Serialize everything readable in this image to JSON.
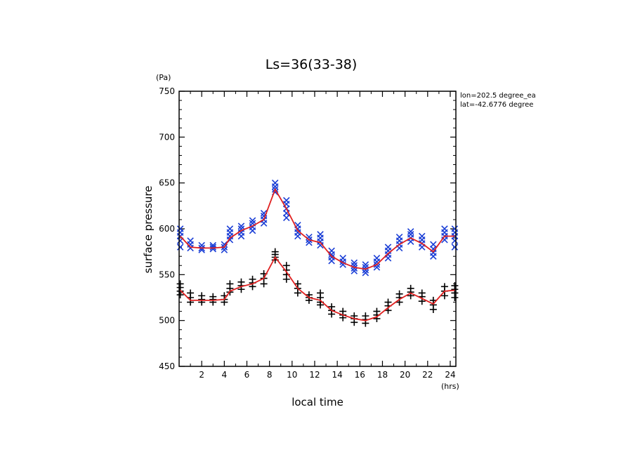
{
  "chart_data": {
    "type": "scatter",
    "title": "Ls=36(33-38)",
    "xlabel": "local time",
    "ylabel": "surface pressure",
    "x_unit": "(hrs)",
    "y_unit": "(Pa)",
    "xlim": [
      0,
      24.5
    ],
    "ylim": [
      450,
      750
    ],
    "x_ticks": [
      2,
      4,
      6,
      8,
      10,
      12,
      14,
      16,
      18,
      20,
      22,
      24
    ],
    "y_ticks": [
      450,
      500,
      550,
      600,
      650,
      700,
      750
    ],
    "annotations": [
      "lon=202.5 degree_ea",
      "lat=-42.6776 degree"
    ],
    "grid": false,
    "series": [
      {
        "marker": "x",
        "color": "#1a3ed6",
        "points": [
          [
            0.1,
            600
          ],
          [
            0.1,
            596
          ],
          [
            0.1,
            592
          ],
          [
            0.1,
            587
          ],
          [
            0.1,
            580
          ],
          [
            1.0,
            587
          ],
          [
            1.0,
            583
          ],
          [
            1.0,
            579
          ],
          [
            2.0,
            582
          ],
          [
            2.0,
            579
          ],
          [
            2.0,
            577
          ],
          [
            3.0,
            582
          ],
          [
            3.0,
            580
          ],
          [
            3.0,
            578
          ],
          [
            4.0,
            583
          ],
          [
            4.0,
            580
          ],
          [
            4.0,
            577
          ],
          [
            4.5,
            600
          ],
          [
            4.5,
            596
          ],
          [
            4.5,
            592
          ],
          [
            4.5,
            588
          ],
          [
            5.5,
            603
          ],
          [
            5.5,
            600
          ],
          [
            5.5,
            596
          ],
          [
            5.5,
            592
          ],
          [
            6.5,
            609
          ],
          [
            6.5,
            606
          ],
          [
            6.5,
            602
          ],
          [
            6.5,
            598
          ],
          [
            7.5,
            617
          ],
          [
            7.5,
            614
          ],
          [
            7.5,
            610
          ],
          [
            7.5,
            606
          ],
          [
            8.5,
            650
          ],
          [
            8.5,
            646
          ],
          [
            8.5,
            643
          ],
          [
            8.5,
            640
          ],
          [
            9.5,
            631
          ],
          [
            9.5,
            627
          ],
          [
            9.5,
            622
          ],
          [
            9.5,
            617
          ],
          [
            9.5,
            612
          ],
          [
            10.5,
            604
          ],
          [
            10.5,
            600
          ],
          [
            10.5,
            596
          ],
          [
            10.5,
            592
          ],
          [
            11.5,
            591
          ],
          [
            11.5,
            588
          ],
          [
            11.5,
            585
          ],
          [
            12.5,
            594
          ],
          [
            12.5,
            590
          ],
          [
            12.5,
            586
          ],
          [
            12.5,
            582
          ],
          [
            13.5,
            576
          ],
          [
            13.5,
            572
          ],
          [
            13.5,
            569
          ],
          [
            13.5,
            565
          ],
          [
            14.5,
            568
          ],
          [
            14.5,
            564
          ],
          [
            14.5,
            561
          ],
          [
            15.5,
            563
          ],
          [
            15.5,
            560
          ],
          [
            15.5,
            557
          ],
          [
            15.5,
            554
          ],
          [
            16.5,
            561
          ],
          [
            16.5,
            558
          ],
          [
            16.5,
            555
          ],
          [
            16.5,
            552
          ],
          [
            17.5,
            568
          ],
          [
            17.5,
            564
          ],
          [
            17.5,
            561
          ],
          [
            17.5,
            558
          ],
          [
            18.5,
            580
          ],
          [
            18.5,
            576
          ],
          [
            18.5,
            572
          ],
          [
            18.5,
            568
          ],
          [
            19.5,
            591
          ],
          [
            19.5,
            587
          ],
          [
            19.5,
            583
          ],
          [
            19.5,
            579
          ],
          [
            20.5,
            597
          ],
          [
            20.5,
            594
          ],
          [
            20.5,
            590
          ],
          [
            20.5,
            586
          ],
          [
            21.5,
            592
          ],
          [
            21.5,
            588
          ],
          [
            21.5,
            584
          ],
          [
            21.5,
            580
          ],
          [
            22.5,
            583
          ],
          [
            22.5,
            578
          ],
          [
            22.5,
            574
          ],
          [
            22.5,
            570
          ],
          [
            23.5,
            600
          ],
          [
            23.5,
            596
          ],
          [
            23.5,
            592
          ],
          [
            23.5,
            588
          ],
          [
            24.4,
            600
          ],
          [
            24.4,
            596
          ],
          [
            24.4,
            592
          ],
          [
            24.4,
            587
          ],
          [
            24.4,
            580
          ]
        ]
      },
      {
        "marker": "+",
        "color": "#000000",
        "points": [
          [
            0.1,
            540
          ],
          [
            0.1,
            536
          ],
          [
            0.1,
            532
          ],
          [
            0.1,
            528
          ],
          [
            1.0,
            530
          ],
          [
            1.0,
            525
          ],
          [
            1.0,
            520
          ],
          [
            2.0,
            527
          ],
          [
            2.0,
            523
          ],
          [
            2.0,
            520
          ],
          [
            3.0,
            526
          ],
          [
            3.0,
            523
          ],
          [
            3.0,
            520
          ],
          [
            4.0,
            527
          ],
          [
            4.0,
            523
          ],
          [
            4.0,
            520
          ],
          [
            4.5,
            540
          ],
          [
            4.5,
            535
          ],
          [
            4.5,
            531
          ],
          [
            5.5,
            542
          ],
          [
            5.5,
            538
          ],
          [
            5.5,
            534
          ],
          [
            6.5,
            545
          ],
          [
            6.5,
            541
          ],
          [
            6.5,
            537
          ],
          [
            7.5,
            551
          ],
          [
            7.5,
            546
          ],
          [
            7.5,
            540
          ],
          [
            8.5,
            575
          ],
          [
            8.5,
            572
          ],
          [
            8.5,
            569
          ],
          [
            8.5,
            566
          ],
          [
            9.5,
            560
          ],
          [
            9.5,
            555
          ],
          [
            9.5,
            550
          ],
          [
            9.5,
            545
          ],
          [
            10.5,
            540
          ],
          [
            10.5,
            535
          ],
          [
            10.5,
            530
          ],
          [
            11.5,
            528
          ],
          [
            11.5,
            525
          ],
          [
            11.5,
            522
          ],
          [
            12.5,
            530
          ],
          [
            12.5,
            525
          ],
          [
            12.5,
            520
          ],
          [
            12.5,
            517
          ],
          [
            13.5,
            515
          ],
          [
            13.5,
            511
          ],
          [
            13.5,
            507
          ],
          [
            14.5,
            510
          ],
          [
            14.5,
            506
          ],
          [
            14.5,
            503
          ],
          [
            15.5,
            505
          ],
          [
            15.5,
            502
          ],
          [
            15.5,
            498
          ],
          [
            16.5,
            505
          ],
          [
            16.5,
            501
          ],
          [
            16.5,
            497
          ],
          [
            17.5,
            510
          ],
          [
            17.5,
            506
          ],
          [
            17.5,
            502
          ],
          [
            18.5,
            520
          ],
          [
            18.5,
            516
          ],
          [
            18.5,
            511
          ],
          [
            19.5,
            529
          ],
          [
            19.5,
            525
          ],
          [
            19.5,
            520
          ],
          [
            20.5,
            535
          ],
          [
            20.5,
            531
          ],
          [
            20.5,
            527
          ],
          [
            21.5,
            530
          ],
          [
            21.5,
            526
          ],
          [
            21.5,
            521
          ],
          [
            22.5,
            522
          ],
          [
            22.5,
            517
          ],
          [
            22.5,
            512
          ],
          [
            23.5,
            537
          ],
          [
            23.5,
            532
          ],
          [
            23.5,
            527
          ],
          [
            24.4,
            538
          ],
          [
            24.4,
            534
          ],
          [
            24.4,
            530
          ],
          [
            24.4,
            525
          ]
        ]
      }
    ],
    "mean_lines": [
      {
        "color": "#e02020",
        "points": [
          [
            0.1,
            592
          ],
          [
            1.0,
            580
          ],
          [
            2.0,
            579
          ],
          [
            3.0,
            579
          ],
          [
            4.0,
            580
          ],
          [
            4.5,
            590
          ],
          [
            5.5,
            598
          ],
          [
            6.5,
            603
          ],
          [
            7.5,
            610
          ],
          [
            8.5,
            643
          ],
          [
            9.5,
            622
          ],
          [
            10.5,
            598
          ],
          [
            11.5,
            588
          ],
          [
            12.5,
            585
          ],
          [
            13.5,
            570
          ],
          [
            14.5,
            563
          ],
          [
            15.5,
            558
          ],
          [
            16.5,
            556
          ],
          [
            17.5,
            561
          ],
          [
            18.5,
            573
          ],
          [
            19.5,
            583
          ],
          [
            20.5,
            590
          ],
          [
            21.5,
            584
          ],
          [
            22.5,
            575
          ],
          [
            23.5,
            592
          ],
          [
            24.4,
            592
          ]
        ]
      },
      {
        "color": "#e02020",
        "points": [
          [
            0.1,
            533
          ],
          [
            1.0,
            522
          ],
          [
            2.0,
            522
          ],
          [
            3.0,
            522
          ],
          [
            4.0,
            523
          ],
          [
            4.5,
            532
          ],
          [
            5.5,
            537
          ],
          [
            6.5,
            540
          ],
          [
            7.5,
            546
          ],
          [
            8.5,
            569
          ],
          [
            9.5,
            553
          ],
          [
            10.5,
            535
          ],
          [
            11.5,
            525
          ],
          [
            12.5,
            522
          ],
          [
            13.5,
            511
          ],
          [
            14.5,
            506
          ],
          [
            15.5,
            502
          ],
          [
            16.5,
            500
          ],
          [
            17.5,
            504
          ],
          [
            18.5,
            514
          ],
          [
            19.5,
            523
          ],
          [
            20.5,
            530
          ],
          [
            21.5,
            524
          ],
          [
            22.5,
            518
          ],
          [
            23.5,
            532
          ],
          [
            24.4,
            533
          ]
        ]
      }
    ]
  }
}
